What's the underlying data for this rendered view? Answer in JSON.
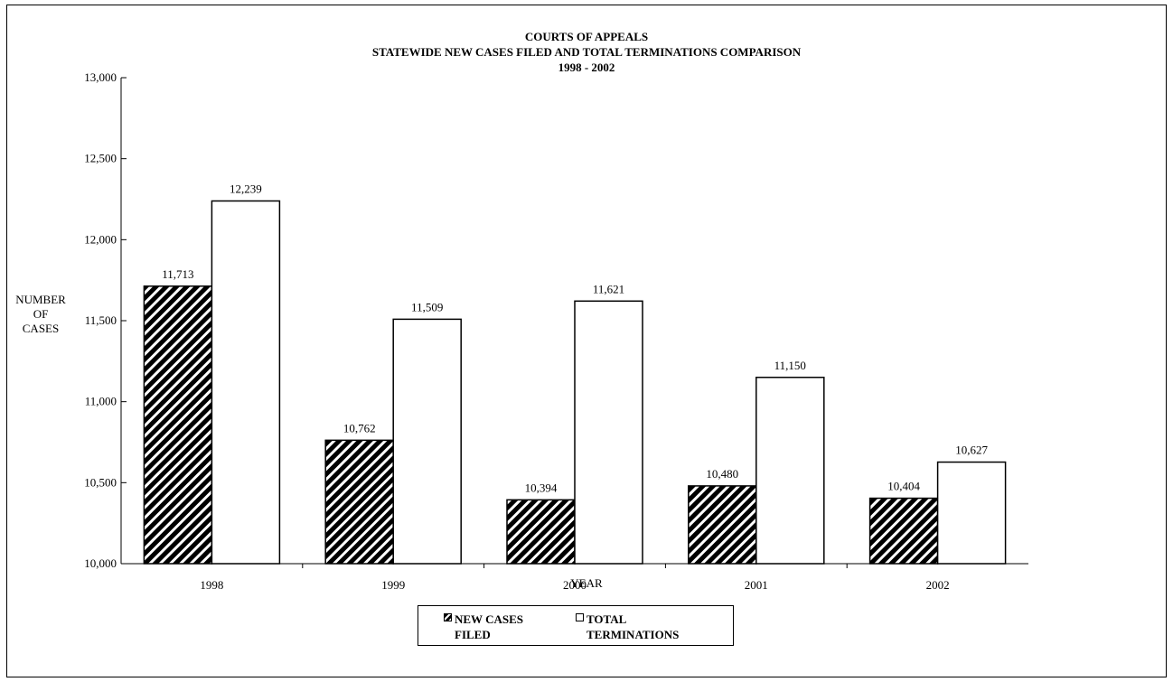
{
  "chart_data": {
    "type": "bar",
    "title_lines": [
      "COURTS OF APPEALS",
      "STATEWIDE NEW CASES FILED AND TOTAL TERMINATIONS COMPARISON",
      "1998 - 2002"
    ],
    "xlabel": "YEAR",
    "ylabel_lines": [
      "NUMBER",
      "OF",
      "CASES"
    ],
    "categories": [
      "1998",
      "1999",
      "2000",
      "2001",
      "2002"
    ],
    "ylim": [
      10000,
      13000
    ],
    "yticks": [
      10000,
      10500,
      11000,
      11500,
      12000,
      12500,
      13000
    ],
    "ytick_labels": [
      "10,000",
      "10,500",
      "11,000",
      "11,500",
      "12,000",
      "12,500",
      "13,000"
    ],
    "grid": false,
    "legend_position": "bottom",
    "series": [
      {
        "name_lines": [
          "NEW CASES",
          "FILED"
        ],
        "fill": "diagonal-hatch",
        "values": [
          11713,
          10762,
          10394,
          10480,
          10404
        ],
        "labels": [
          "11,713",
          "10,762",
          "10,394",
          "10,480",
          "10,404"
        ]
      },
      {
        "name_lines": [
          "TOTAL",
          "TERMINATIONS"
        ],
        "fill": "white",
        "values": [
          12239,
          11509,
          11621,
          11150,
          10627
        ],
        "labels": [
          "12,239",
          "11,509",
          "11,621",
          "11,150",
          "10,627"
        ]
      }
    ]
  }
}
